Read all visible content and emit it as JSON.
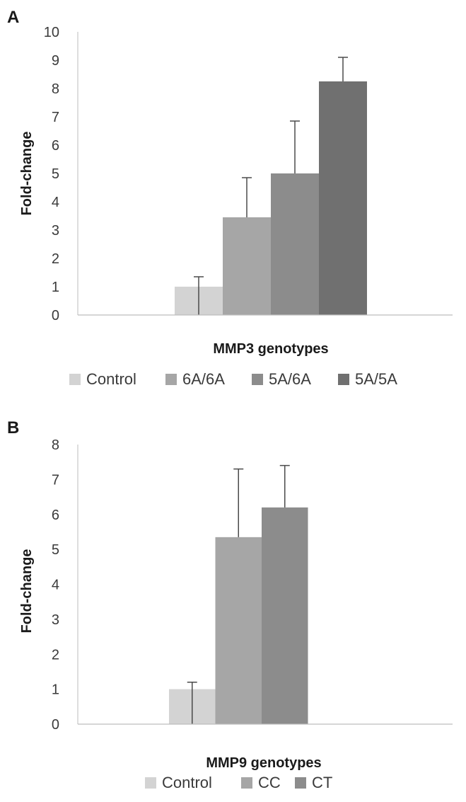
{
  "chart_data": [
    {
      "type": "bar",
      "panel": "A",
      "xlabel": "MMP3 genotypes",
      "ylabel": "Fold-change",
      "ylim": [
        0,
        10
      ],
      "yticks": [
        0,
        1,
        2,
        3,
        4,
        5,
        6,
        7,
        8,
        9,
        10
      ],
      "legend_position": "bottom",
      "series": [
        {
          "name": "Control",
          "value": 1.0,
          "error": 0.35,
          "color": "#d3d3d3"
        },
        {
          "name": "6A/6A",
          "value": 3.45,
          "error": 1.4,
          "color": "#a6a6a6"
        },
        {
          "name": "5A/6A",
          "value": 5.0,
          "error": 1.85,
          "color": "#8c8c8c"
        },
        {
          "name": "5A/5A",
          "value": 8.25,
          "error": 0.85,
          "color": "#707070"
        }
      ]
    },
    {
      "type": "bar",
      "panel": "B",
      "xlabel": "MMP9 genotypes",
      "ylabel": "Fold-change",
      "ylim": [
        0,
        8
      ],
      "yticks": [
        0,
        1,
        2,
        3,
        4,
        5,
        6,
        7,
        8
      ],
      "legend_position": "bottom",
      "series": [
        {
          "name": "Control",
          "value": 1.0,
          "error": 0.2,
          "color": "#d3d3d3"
        },
        {
          "name": "CC",
          "value": 5.35,
          "error": 1.95,
          "color": "#a6a6a6"
        },
        {
          "name": "CT",
          "value": 6.2,
          "error": 1.2,
          "color": "#8c8c8c"
        }
      ]
    }
  ]
}
